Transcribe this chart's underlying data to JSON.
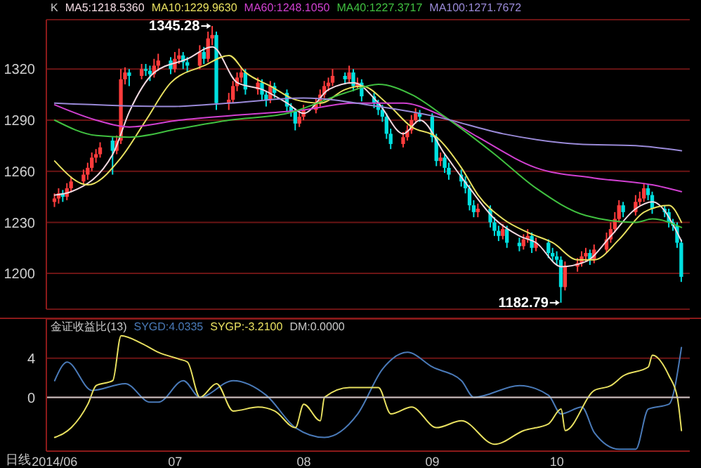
{
  "chart_data": [
    {
      "type": "candlestick",
      "legend_title": "K",
      "legend": "top left",
      "grid": "y",
      "tick_labels": "y",
      "marker": "none",
      "xlim": [
        "2014-05-31",
        "2014-11-02"
      ],
      "ylim": [
        1179,
        1349
      ],
      "yticks": [
        1200,
        1230,
        1260,
        1290,
        1320
      ],
      "x": [
        "2014-06-02",
        "2014-06-03",
        "2014-06-04",
        "2014-06-05",
        "2014-06-06",
        "2014-06-09",
        "2014-06-10",
        "2014-06-11",
        "2014-06-12",
        "2014-06-13",
        "2014-06-16",
        "2014-06-17",
        "2014-06-18",
        "2014-06-19",
        "2014-06-20",
        "2014-06-23",
        "2014-06-24",
        "2014-06-25",
        "2014-06-26",
        "2014-06-27",
        "2014-06-30",
        "2014-07-01",
        "2014-07-02",
        "2014-07-03",
        "2014-07-04",
        "2014-07-07",
        "2014-07-08",
        "2014-07-09",
        "2014-07-10",
        "2014-07-11",
        "2014-07-14",
        "2014-07-15",
        "2014-07-16",
        "2014-07-17",
        "2014-07-18",
        "2014-07-21",
        "2014-07-22",
        "2014-07-23",
        "2014-07-24",
        "2014-07-25",
        "2014-07-28",
        "2014-07-29",
        "2014-07-30",
        "2014-07-31",
        "2014-08-01",
        "2014-08-04",
        "2014-08-05",
        "2014-08-06",
        "2014-08-07",
        "2014-08-08",
        "2014-08-11",
        "2014-08-12",
        "2014-08-13",
        "2014-08-14",
        "2014-08-15",
        "2014-08-18",
        "2014-08-19",
        "2014-08-20",
        "2014-08-21",
        "2014-08-22",
        "2014-08-25",
        "2014-08-26",
        "2014-08-27",
        "2014-08-28",
        "2014-08-29",
        "2014-09-01",
        "2014-09-02",
        "2014-09-03",
        "2014-09-04",
        "2014-09-05",
        "2014-09-08",
        "2014-09-09",
        "2014-09-10",
        "2014-09-11",
        "2014-09-12",
        "2014-09-15",
        "2014-09-16",
        "2014-09-17",
        "2014-09-18",
        "2014-09-19",
        "2014-09-22",
        "2014-09-23",
        "2014-09-24",
        "2014-09-25",
        "2014-09-26",
        "2014-09-29",
        "2014-09-30",
        "2014-10-01",
        "2014-10-02",
        "2014-10-03",
        "2014-10-06",
        "2014-10-07",
        "2014-10-08",
        "2014-10-09",
        "2014-10-10",
        "2014-10-13",
        "2014-10-14",
        "2014-10-15",
        "2014-10-16",
        "2014-10-17",
        "2014-10-20",
        "2014-10-21",
        "2014-10-22",
        "2014-10-23",
        "2014-10-24",
        "2014-10-27",
        "2014-10-28",
        "2014-10-29",
        "2014-10-30",
        "2014-10-31"
      ],
      "ohlc": [
        [
          1242,
          1247,
          1239,
          1244
        ],
        [
          1244,
          1250,
          1241,
          1247
        ],
        [
          1247,
          1249,
          1242,
          1245
        ],
        [
          1245,
          1253,
          1243,
          1250
        ],
        [
          1250,
          1257,
          1248,
          1254
        ],
        [
          1254,
          1261,
          1252,
          1258
        ],
        [
          1258,
          1265,
          1255,
          1262
        ],
        [
          1262,
          1271,
          1260,
          1268
        ],
        [
          1268,
          1273,
          1265,
          1270
        ],
        [
          1270,
          1277,
          1268,
          1274
        ],
        [
          1278,
          1280,
          1258,
          1272
        ],
        [
          1272,
          1281,
          1270,
          1278
        ],
        [
          1278,
          1320,
          1276,
          1314
        ],
        [
          1314,
          1321,
          1311,
          1318
        ],
        [
          1318,
          1320,
          1310,
          1316
        ],
        [
          1316,
          1323,
          1314,
          1320
        ],
        [
          1320,
          1323,
          1316,
          1319
        ],
        [
          1319,
          1322,
          1313,
          1317
        ],
        [
          1317,
          1326,
          1315,
          1322
        ],
        [
          1322,
          1329,
          1319,
          1325
        ],
        [
          1325,
          1327,
          1317,
          1320
        ],
        [
          1320,
          1330,
          1318,
          1326
        ],
        [
          1326,
          1332,
          1323,
          1328
        ],
        [
          1328,
          1330,
          1320,
          1324
        ],
        [
          1324,
          1327,
          1318,
          1322
        ],
        [
          1322,
          1334,
          1320,
          1330
        ],
        [
          1330,
          1333,
          1323,
          1326
        ],
        [
          1326,
          1342,
          1324,
          1338
        ],
        [
          1338,
          1345.28,
          1334,
          1340
        ],
        [
          1340,
          1342,
          1296,
          1300
        ],
        [
          1300,
          1306,
          1296,
          1302
        ],
        [
          1302,
          1313,
          1300,
          1310
        ],
        [
          1310,
          1318,
          1307,
          1315
        ],
        [
          1315,
          1321,
          1312,
          1318
        ],
        [
          1318,
          1320,
          1305,
          1308
        ],
        [
          1308,
          1315,
          1305,
          1312
        ],
        [
          1312,
          1314,
          1302,
          1305
        ],
        [
          1305,
          1307,
          1298,
          1302
        ],
        [
          1302,
          1313,
          1300,
          1310
        ],
        [
          1310,
          1312,
          1303,
          1306
        ],
        [
          1306,
          1308,
          1295,
          1298
        ],
        [
          1298,
          1300,
          1292,
          1295
        ],
        [
          1295,
          1297,
          1284,
          1288
        ],
        [
          1288,
          1295,
          1286,
          1292
        ],
        [
          1292,
          1299,
          1290,
          1296
        ],
        [
          1296,
          1303,
          1294,
          1300
        ],
        [
          1300,
          1308,
          1298,
          1305
        ],
        [
          1305,
          1313,
          1303,
          1310
        ],
        [
          1310,
          1315,
          1307,
          1312
        ],
        [
          1312,
          1320,
          1310,
          1316
        ],
        [
          1316,
          1318,
          1311,
          1314
        ],
        [
          1314,
          1322,
          1312,
          1318
        ],
        [
          1318,
          1320,
          1307,
          1310
        ],
        [
          1310,
          1315,
          1308,
          1312
        ],
        [
          1312,
          1314,
          1301,
          1304
        ],
        [
          1304,
          1306,
          1297,
          1300
        ],
        [
          1300,
          1302,
          1293,
          1296
        ],
        [
          1296,
          1299,
          1289,
          1292
        ],
        [
          1292,
          1294,
          1279,
          1282
        ],
        [
          1282,
          1285,
          1273,
          1276
        ],
        [
          1276,
          1283,
          1274,
          1280
        ],
        [
          1280,
          1287,
          1278,
          1284
        ],
        [
          1284,
          1293,
          1282,
          1290
        ],
        [
          1290,
          1297,
          1288,
          1294
        ],
        [
          1294,
          1296,
          1289,
          1292
        ],
        [
          1292,
          1294,
          1277,
          1280
        ],
        [
          1280,
          1282,
          1263,
          1266
        ],
        [
          1266,
          1271,
          1263,
          1268
        ],
        [
          1268,
          1270,
          1259,
          1262
        ],
        [
          1262,
          1265,
          1255,
          1258
        ],
        [
          1258,
          1261,
          1251,
          1254
        ],
        [
          1254,
          1257,
          1247,
          1250
        ],
        [
          1250,
          1252,
          1237,
          1240
        ],
        [
          1240,
          1243,
          1233,
          1236
        ],
        [
          1236,
          1241,
          1233,
          1238
        ],
        [
          1238,
          1240,
          1227,
          1230
        ],
        [
          1230,
          1233,
          1222,
          1225
        ],
        [
          1225,
          1228,
          1219,
          1222
        ],
        [
          1222,
          1229,
          1220,
          1226
        ],
        [
          1226,
          1228,
          1215,
          1218
        ],
        [
          1218,
          1221,
          1213,
          1216
        ],
        [
          1216,
          1223,
          1214,
          1220
        ],
        [
          1220,
          1226,
          1218,
          1222
        ],
        [
          1222,
          1224,
          1212,
          1215
        ],
        [
          1215,
          1221,
          1213,
          1218
        ],
        [
          1218,
          1220,
          1209,
          1212
        ],
        [
          1212,
          1215,
          1207,
          1210
        ],
        [
          1210,
          1213,
          1205,
          1208
        ],
        [
          1208,
          1210,
          1182.79,
          1192
        ],
        [
          1192,
          1207,
          1190,
          1204
        ],
        [
          1204,
          1209,
          1201,
          1206
        ],
        [
          1206,
          1213,
          1204,
          1210
        ],
        [
          1210,
          1215,
          1207,
          1212
        ],
        [
          1212,
          1214,
          1205,
          1208
        ],
        [
          1208,
          1217,
          1206,
          1214
        ],
        [
          1214,
          1224,
          1212,
          1220
        ],
        [
          1220,
          1230,
          1218,
          1226
        ],
        [
          1226,
          1236,
          1224,
          1232
        ],
        [
          1232,
          1243,
          1230,
          1240
        ],
        [
          1240,
          1242,
          1233,
          1236
        ],
        [
          1236,
          1246,
          1234,
          1242
        ],
        [
          1242,
          1248,
          1240,
          1244
        ],
        [
          1244,
          1253,
          1242,
          1250
        ],
        [
          1250,
          1252,
          1243,
          1246
        ],
        [
          1246,
          1248,
          1235,
          1238
        ],
        [
          1238,
          1240,
          1233,
          1236
        ],
        [
          1236,
          1238,
          1227,
          1230
        ],
        [
          1230,
          1232,
          1225,
          1228
        ],
        [
          1228,
          1230,
          1215,
          1218
        ],
        [
          1218,
          1220,
          1195,
          1198
        ]
      ],
      "colors": [
        "#ff3c3c",
        "#ff3c3c",
        "#00e0e0",
        "#ff3c3c",
        "#ff3c3c",
        "#ff3c3c",
        "#ff3c3c",
        "#ff3c3c",
        "#ff3c3c",
        "#ff3c3c",
        "#00e0e0",
        "#ff3c3c",
        "#ff3c3c",
        "#ff3c3c",
        "#00e0e0",
        "#ff3c3c",
        "#00e0e0",
        "#00e0e0",
        "#ff3c3c",
        "#ff3c3c",
        "#00e0e0",
        "#ff3c3c",
        "#ff3c3c",
        "#00e0e0",
        "#00e0e0",
        "#ff3c3c",
        "#00e0e0",
        "#ff3c3c",
        "#ff3c3c",
        "#00e0e0",
        "#ff3c3c",
        "#ff3c3c",
        "#ff3c3c",
        "#ff3c3c",
        "#00e0e0",
        "#ff3c3c",
        "#00e0e0",
        "#00e0e0",
        "#ff3c3c",
        "#00e0e0",
        "#00e0e0",
        "#00e0e0",
        "#00e0e0",
        "#ff3c3c",
        "#ff3c3c",
        "#ff3c3c",
        "#ff3c3c",
        "#ff3c3c",
        "#ff3c3c",
        "#ff3c3c",
        "#00e0e0",
        "#ff3c3c",
        "#00e0e0",
        "#ff3c3c",
        "#00e0e0",
        "#00e0e0",
        "#00e0e0",
        "#00e0e0",
        "#00e0e0",
        "#00e0e0",
        "#ff3c3c",
        "#ff3c3c",
        "#ff3c3c",
        "#ff3c3c",
        "#00e0e0",
        "#00e0e0",
        "#00e0e0",
        "#ff3c3c",
        "#00e0e0",
        "#00e0e0",
        "#00e0e0",
        "#00e0e0",
        "#00e0e0",
        "#00e0e0",
        "#ff3c3c",
        "#00e0e0",
        "#00e0e0",
        "#00e0e0",
        "#ff3c3c",
        "#00e0e0",
        "#00e0e0",
        "#ff3c3c",
        "#ff3c3c",
        "#00e0e0",
        "#ff3c3c",
        "#00e0e0",
        "#00e0e0",
        "#00e0e0",
        "#00e0e0",
        "#ff3c3c",
        "#ff3c3c",
        "#ff3c3c",
        "#ff3c3c",
        "#00e0e0",
        "#ff3c3c",
        "#ff3c3c",
        "#ff3c3c",
        "#ff3c3c",
        "#ff3c3c",
        "#00e0e0",
        "#ff3c3c",
        "#ff3c3c",
        "#ff3c3c",
        "#00e0e0",
        "#00e0e0",
        "#00e0e0",
        "#00e0e0",
        "#00e0e0",
        "#00e0e0",
        "#00e0e0"
      ],
      "series": [
        {
          "type": "line",
          "name": "MA5:1218.5360",
          "color": "#f0d8e0",
          "x": [
            "2014-06-02",
            "2014-06-06",
            "2014-06-16",
            "2014-06-20",
            "2014-06-26",
            "2014-07-04",
            "2014-07-10",
            "2014-07-16",
            "2014-07-22",
            "2014-07-28",
            "2014-08-01",
            "2014-08-07",
            "2014-08-13",
            "2014-08-19",
            "2014-08-25",
            "2014-08-29",
            "2014-09-04",
            "2014-09-10",
            "2014-09-16",
            "2014-09-22",
            "2014-09-26",
            "2014-10-02",
            "2014-10-08",
            "2014-10-14",
            "2014-10-20",
            "2014-10-24",
            "2014-10-31"
          ],
          "values": [
            1246,
            1248,
            1270,
            1295,
            1318,
            1326,
            1333,
            1312,
            1308,
            1300,
            1294,
            1308,
            1312,
            1300,
            1282,
            1290,
            1270,
            1250,
            1232,
            1222,
            1218,
            1204,
            1207,
            1222,
            1238,
            1242,
            1219
          ]
        },
        {
          "type": "line",
          "name": "MA10:1229.9630",
          "color": "#e8e060",
          "x": [
            "2014-06-02",
            "2014-06-10",
            "2014-06-18",
            "2014-06-24",
            "2014-06-30",
            "2014-07-08",
            "2014-07-14",
            "2014-07-18",
            "2014-07-24",
            "2014-07-30",
            "2014-08-05",
            "2014-08-11",
            "2014-08-15",
            "2014-08-21",
            "2014-08-27",
            "2014-09-02",
            "2014-09-08",
            "2014-09-12",
            "2014-09-18",
            "2014-09-24",
            "2014-09-30",
            "2014-10-06",
            "2014-10-10",
            "2014-10-16",
            "2014-10-22",
            "2014-10-28",
            "2014-10-31"
          ],
          "values": [
            1266,
            1252,
            1268,
            1290,
            1312,
            1322,
            1328,
            1318,
            1310,
            1302,
            1300,
            1308,
            1310,
            1300,
            1286,
            1280,
            1262,
            1246,
            1232,
            1224,
            1218,
            1208,
            1208,
            1220,
            1236,
            1240,
            1230
          ]
        },
        {
          "type": "line",
          "name": "MA60:1248.1050",
          "color": "#d040d0",
          "x": [
            "2014-06-02",
            "2014-06-12",
            "2014-06-20",
            "2014-07-02",
            "2014-07-16",
            "2014-08-01",
            "2014-08-13",
            "2014-08-25",
            "2014-09-02",
            "2014-09-12",
            "2014-09-26",
            "2014-10-10",
            "2014-10-24",
            "2014-10-31"
          ],
          "values": [
            1299,
            1290,
            1286,
            1290,
            1293,
            1296,
            1300,
            1300,
            1294,
            1280,
            1262,
            1256,
            1252,
            1248
          ]
        },
        {
          "type": "line",
          "name": "MA40:1227.3717",
          "color": "#40c040",
          "x": [
            "2014-06-02",
            "2014-06-12",
            "2014-06-20",
            "2014-07-02",
            "2014-07-14",
            "2014-07-28",
            "2014-08-11",
            "2014-08-19",
            "2014-08-27",
            "2014-09-04",
            "2014-09-16",
            "2014-09-26",
            "2014-10-08",
            "2014-10-20",
            "2014-10-24",
            "2014-10-31"
          ],
          "values": [
            1290,
            1281,
            1280,
            1285,
            1290,
            1294,
            1306,
            1311,
            1305,
            1292,
            1270,
            1250,
            1234,
            1230,
            1232,
            1227
          ]
        },
        {
          "type": "line",
          "name": "MA100:1271.7672",
          "color": "#9a8ad8",
          "x": [
            "2014-06-02",
            "2014-06-30",
            "2014-07-14",
            "2014-08-01",
            "2014-08-19",
            "2014-09-02",
            "2014-09-18",
            "2014-10-06",
            "2014-10-20",
            "2014-10-31"
          ],
          "values": [
            1300,
            1298,
            1300,
            1303,
            1298,
            1292,
            1282,
            1276,
            1275,
            1272
          ]
        }
      ],
      "annotations": [
        {
          "text": "1345.28",
          "x": "2014-07-10",
          "y": 1345.28
        },
        {
          "text": "1182.79",
          "x": "2014-10-02",
          "y": 1182.79
        }
      ]
    },
    {
      "type": "line",
      "legend_title": "金证收益比(13)",
      "legend": "top left",
      "grid": "y",
      "marker": "none",
      "xlabel": "日线",
      "xlim": [
        "2014-05-31",
        "2014-11-02"
      ],
      "ylim": [
        -5.5,
        8
      ],
      "yticks": [
        0,
        4
      ],
      "xticks": [
        {
          "value": "2014-06-02",
          "label": "2014/06"
        },
        {
          "value": "2014-07-01",
          "label": "07"
        },
        {
          "value": "2014-08-01",
          "label": "08"
        },
        {
          "value": "2014-09-01",
          "label": "09"
        },
        {
          "value": "2014-10-01",
          "label": "10"
        }
      ],
      "series": [
        {
          "type": "line",
          "name": "SYGD:4.0335",
          "color": "#4a7ab8",
          "x": [
            "2014-06-02",
            "2014-06-05",
            "2014-06-11",
            "2014-06-19",
            "2014-06-25",
            "2014-06-27",
            "2014-07-03",
            "2014-07-07",
            "2014-07-15",
            "2014-07-23",
            "2014-07-30",
            "2014-08-06",
            "2014-08-14",
            "2014-08-20",
            "2014-08-26",
            "2014-09-01",
            "2014-09-08",
            "2014-09-11",
            "2014-09-22",
            "2014-09-29",
            "2014-10-02",
            "2014-10-07",
            "2014-10-10",
            "2014-10-16",
            "2014-10-20",
            "2014-10-23",
            "2014-10-28",
            "2014-10-31"
          ],
          "values": [
            1.7,
            3.6,
            0.7,
            1.4,
            -0.5,
            -0.5,
            1.7,
            0,
            1.7,
            0.2,
            -3.1,
            -4.1,
            -1.7,
            2.9,
            4.6,
            3.1,
            1.7,
            0,
            1.2,
            0.2,
            -1.7,
            -1,
            -3.6,
            -5.3,
            -5.3,
            -1.2,
            -0.7,
            5.1
          ]
        },
        {
          "type": "line",
          "name": "SYGP:-3.2100",
          "color": "#e8e060",
          "x": [
            "2014-06-02",
            "2014-06-06",
            "2014-06-10",
            "2014-06-12",
            "2014-06-16",
            "2014-06-18",
            "2014-06-23",
            "2014-06-27",
            "2014-07-02",
            "2014-07-04",
            "2014-07-07",
            "2014-07-11",
            "2014-07-15",
            "2014-07-21",
            "2014-07-25",
            "2014-07-30",
            "2014-08-01",
            "2014-08-05",
            "2014-08-06",
            "2014-08-12",
            "2014-08-19",
            "2014-08-22",
            "2014-08-27",
            "2014-09-02",
            "2014-09-08",
            "2014-09-16",
            "2014-09-23",
            "2014-09-29",
            "2014-10-02",
            "2014-10-03",
            "2014-10-10",
            "2014-10-14",
            "2014-10-17",
            "2014-10-23",
            "2014-10-24",
            "2014-10-28",
            "2014-10-30",
            "2014-10-31"
          ],
          "values": [
            -4.1,
            -3.1,
            -0.7,
            1.2,
            1.7,
            6.3,
            5.5,
            4.6,
            3.9,
            3.6,
            0,
            1.4,
            -1.4,
            -1,
            -1.4,
            -3.1,
            -0.7,
            -2.4,
            0,
            1,
            1,
            -1.7,
            -1,
            -3.1,
            -2.4,
            -4.8,
            -3.4,
            -2.7,
            -1.2,
            -3.4,
            0.7,
            1.2,
            2.2,
            3.1,
            4.3,
            2.2,
            0,
            -3.4
          ]
        },
        {
          "type": "line",
          "name": "DM:0.0000",
          "color": "#c8c8c8",
          "x": [
            "2014-05-31",
            "2014-11-02"
          ],
          "values": [
            0,
            0
          ]
        }
      ]
    }
  ]
}
